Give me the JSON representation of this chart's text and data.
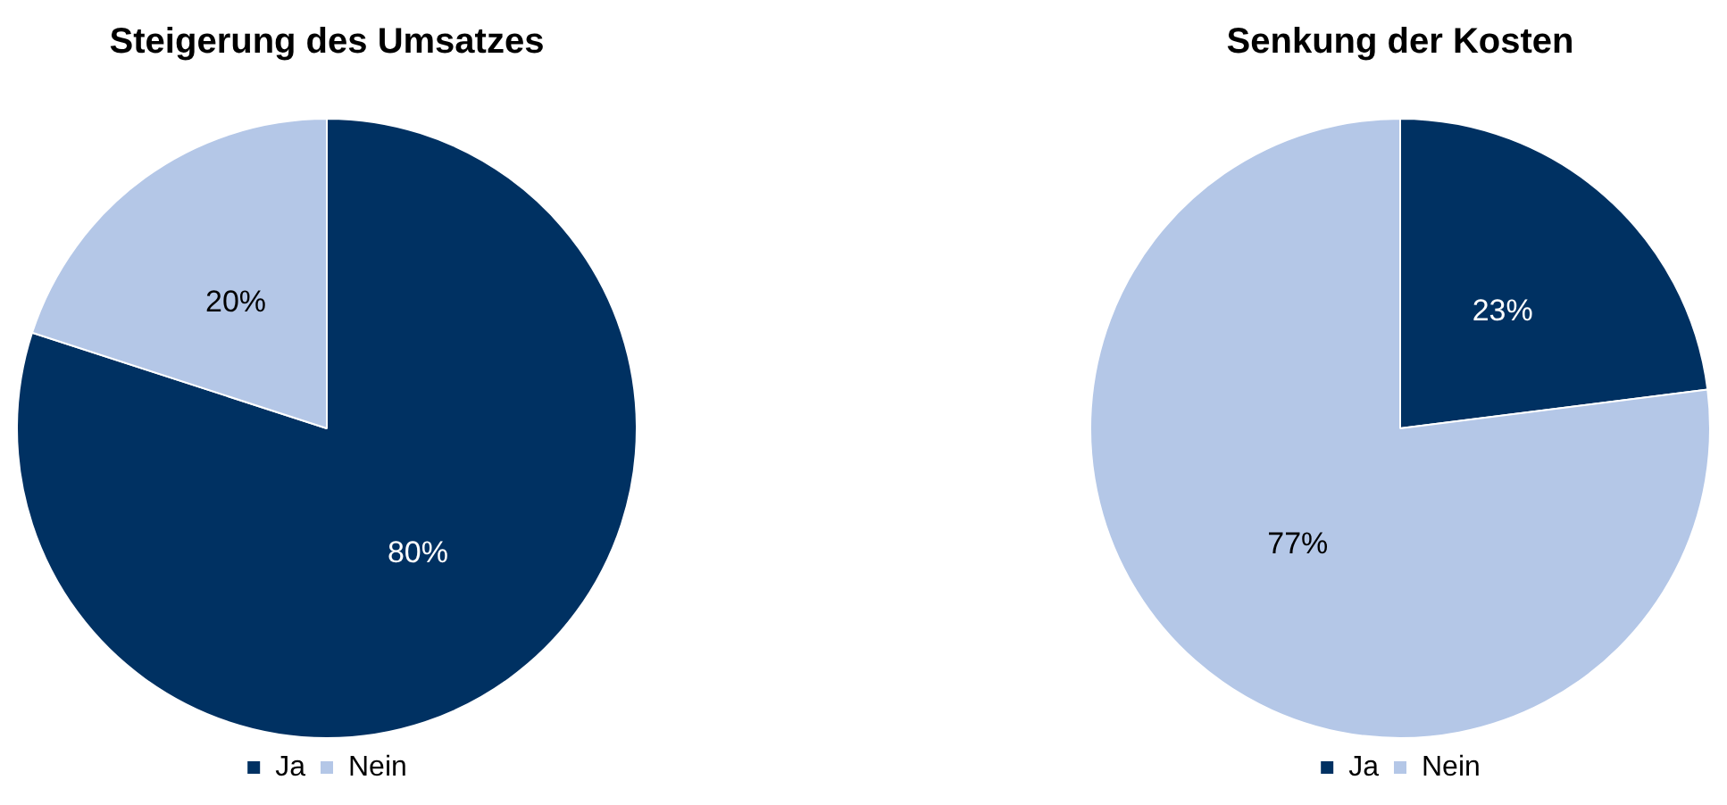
{
  "chart_data": [
    {
      "type": "pie",
      "title": "Steigerung des Umsatzes",
      "categories": [
        "Ja",
        "Nein"
      ],
      "values": [
        80,
        20
      ],
      "value_labels": [
        "80%",
        "20%"
      ],
      "colors": [
        "#003162",
        "#b4c7e7"
      ],
      "legend": "bottom"
    },
    {
      "type": "pie",
      "title": "Senkung der Kosten",
      "categories": [
        "Ja",
        "Nein"
      ],
      "values": [
        23,
        77
      ],
      "value_labels": [
        "23%",
        "77%"
      ],
      "colors": [
        "#003162",
        "#b4c7e7"
      ],
      "legend": "bottom"
    }
  ]
}
